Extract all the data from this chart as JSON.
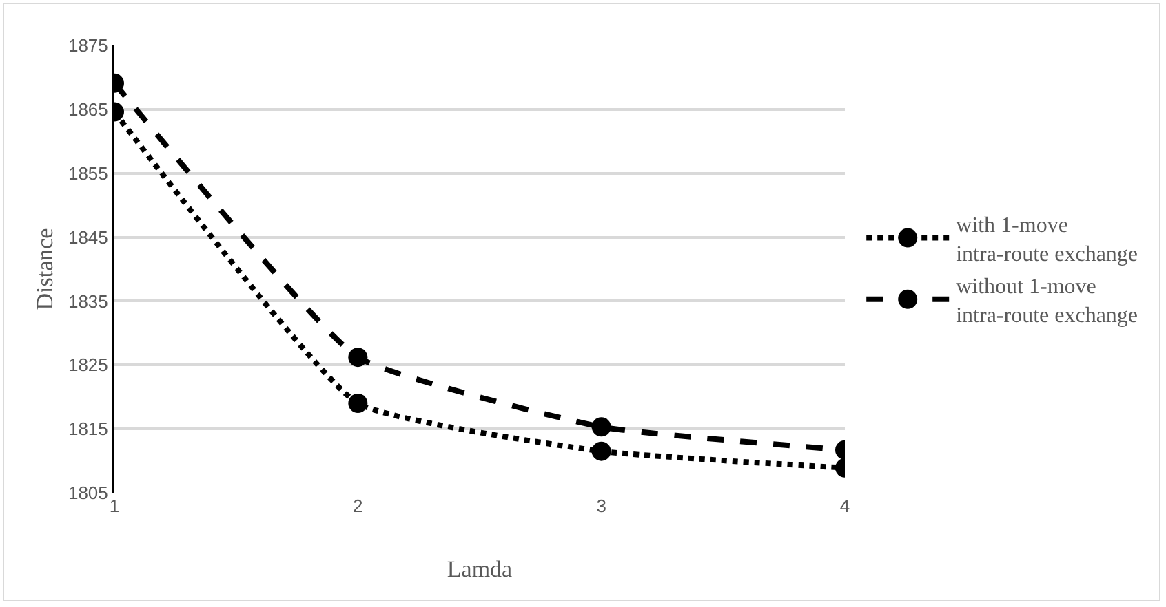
{
  "chart_data": {
    "type": "line",
    "xlabel": "Lamda",
    "ylabel": "Distance",
    "categories": [
      "1",
      "2",
      "3",
      "4"
    ],
    "series": [
      {
        "name": "with 1-move intra-route exchange",
        "color": "#000000",
        "values": [
          1864.6,
          1819,
          1811.5,
          1808.9
        ],
        "line_style": "dotted"
      },
      {
        "name": "without 1-move intra-route exchange",
        "color": "#000000",
        "values": [
          1869.1,
          1826.2,
          1815.3,
          1811.7
        ],
        "line_style": "dashed"
      }
    ],
    "ylim": [
      1805,
      1875
    ],
    "yticks": [
      1805,
      1815,
      1825,
      1835,
      1845,
      1855,
      1865,
      1875
    ],
    "grid": "y",
    "legend": "right",
    "marker": "circle"
  }
}
